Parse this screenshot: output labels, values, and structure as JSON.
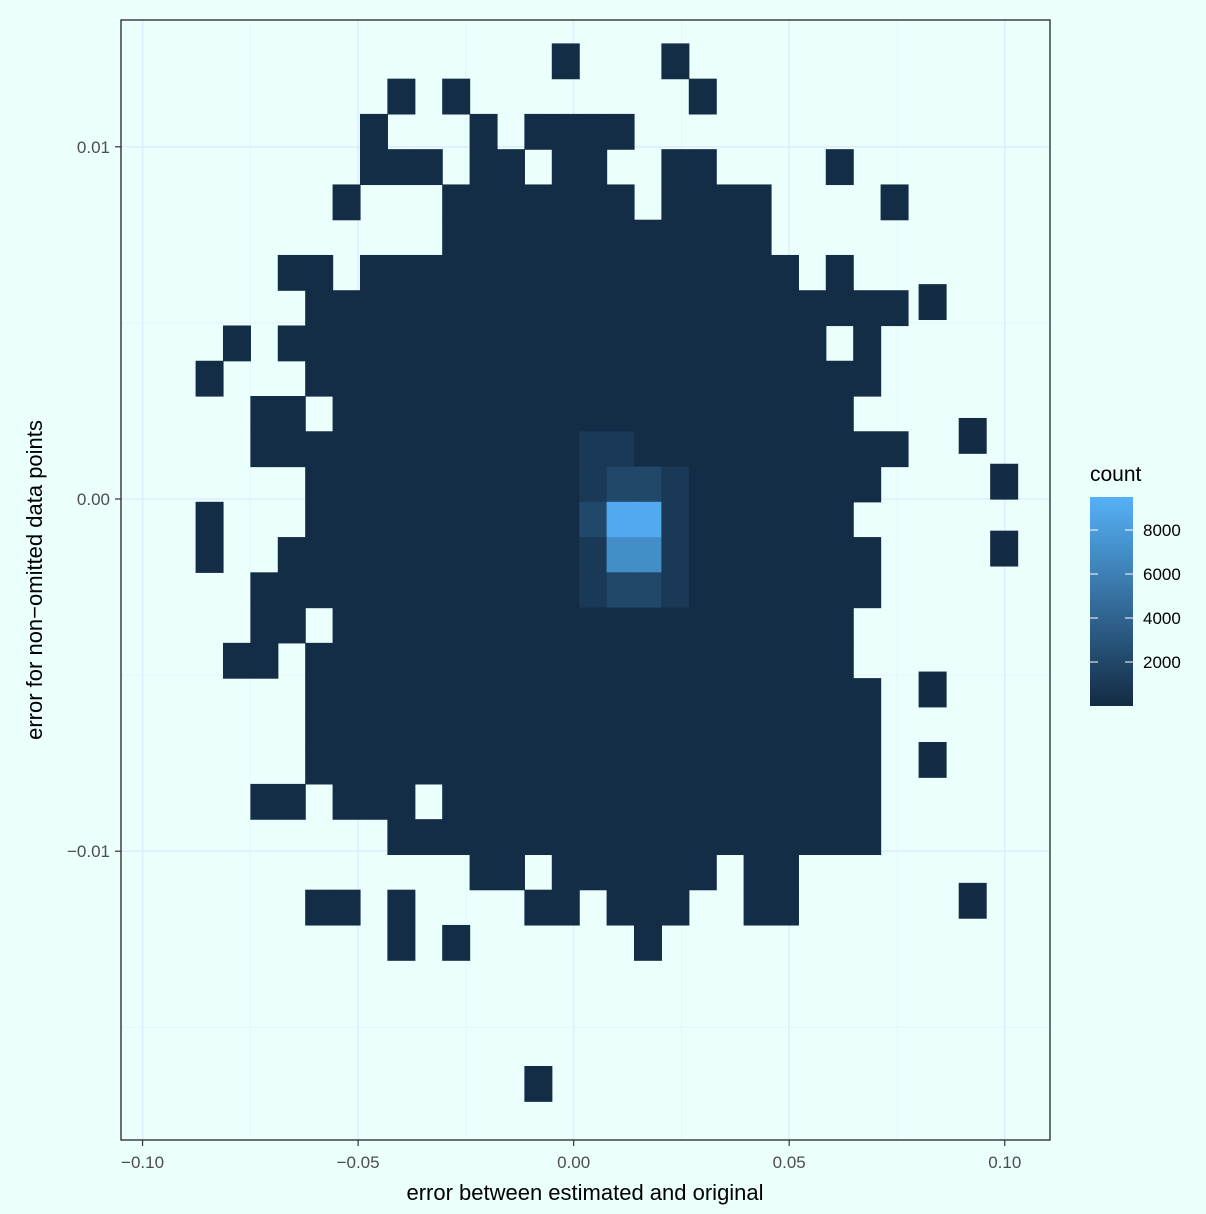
{
  "chart_data": {
    "type": "heatmap",
    "xlabel": "error between estimated and original",
    "ylabel": "error for non−omitted data points",
    "xlim": [
      -0.105,
      0.1105
    ],
    "ylim": [
      -0.0182,
      0.0136
    ],
    "x_ticks": [
      -0.1,
      -0.05,
      0.0,
      0.05,
      0.1
    ],
    "x_tick_labels": [
      "−0.10",
      "−0.05",
      "0.00",
      "0.05",
      "0.10"
    ],
    "y_ticks": [
      -0.01,
      0.0,
      0.01
    ],
    "y_tick_labels": [
      "−0.01",
      "0.00",
      "0.01"
    ],
    "grid": true,
    "bin_origin": {
      "x": -0.0877,
      "y": -0.0171
    },
    "bin_width": {
      "x": 0.006356,
      "y": 0.0010012
    },
    "bin_counts_note": "rows listed from top (row 0 = highest y bin); character per column: '.' empty, 'x' low count (~1-300), digits 1-9 = count/1000 rounded",
    "grid_rows": [
      ".............x...x........",
      ".......x.x........x.......",
      "......x...x.xxxx..........",
      "......xxx.xx.xx..xx....x..",
      ".....x...xxxxxxx.xxxx....x",
      ".........xxxxxxxxxxxx.....",
      "...xx.xxxxxxxxxxxxxxxx.x..",
      "....xxxxxxxxxxxxxxxxxxxxxx",
      ".x.xxxxxxxxxxxxxxxxxxxx.x.",
      "x...xxxxxxxxxxxxxxxxxxxxx.",
      "..xx.xxxxxxxxxxxxxxxxxxx..",
      "..xxxxxxxxxxxx11xxxxxxxxxx",
      "....xxxxxxxxxx1221xxxxxxx.",
      "x...xxxxxxxxxx2991xxxxxx..",
      "x..xxxxxxxxxxx1771xxxxxxx.",
      "..xxxxxxxxxxxx1221xxxxxxx.",
      "..xx.xxxxxxxxxxxxxxxxxxx..",
      ".xx.xxxxxxxxxxxxxxxxxxxx..",
      "....xxxxxxxxxxxxxxxxxxxxx.",
      "....xxxxxxxxxxxxxxxxxxxxx.",
      "....xxxxxxxxxxxxxxxxxxxxx.",
      "..xx.xxx.xxxxxxxxxxxxxxxx.",
      ".......xxxxxxxxxxxxxxxxxx.",
      "..........xx.xxxxxx.xx....",
      "....xx.x....xx.xxx..xx....",
      ".......x.x......x.........",
      "..........................",
      "..........................",
      "..........................",
      "............x............."
    ],
    "extra_bins": [
      {
        "x": 0.0925,
        "y": 0.0018,
        "count": 1
      },
      {
        "x": 0.0998,
        "y": 0.0005,
        "count": 1
      },
      {
        "x": 0.0998,
        "y": -0.0014,
        "count": 1
      },
      {
        "x": 0.0925,
        "y": -0.0114,
        "count": 1
      },
      {
        "x": 0.0832,
        "y": 0.0056,
        "count": 1
      },
      {
        "x": 0.0832,
        "y": -0.0074,
        "count": 1
      },
      {
        "x": 0.0832,
        "y": -0.0054,
        "count": 1
      }
    ],
    "fill_scale": {
      "title": "count",
      "min": 1,
      "max": 9500,
      "low_color": "#132b43",
      "high_color": "#56b1f7",
      "breaks": [
        2000,
        4000,
        6000,
        8000
      ],
      "break_labels": [
        "2000",
        "4000",
        "6000",
        "8000"
      ]
    },
    "legend_placement": "right"
  }
}
